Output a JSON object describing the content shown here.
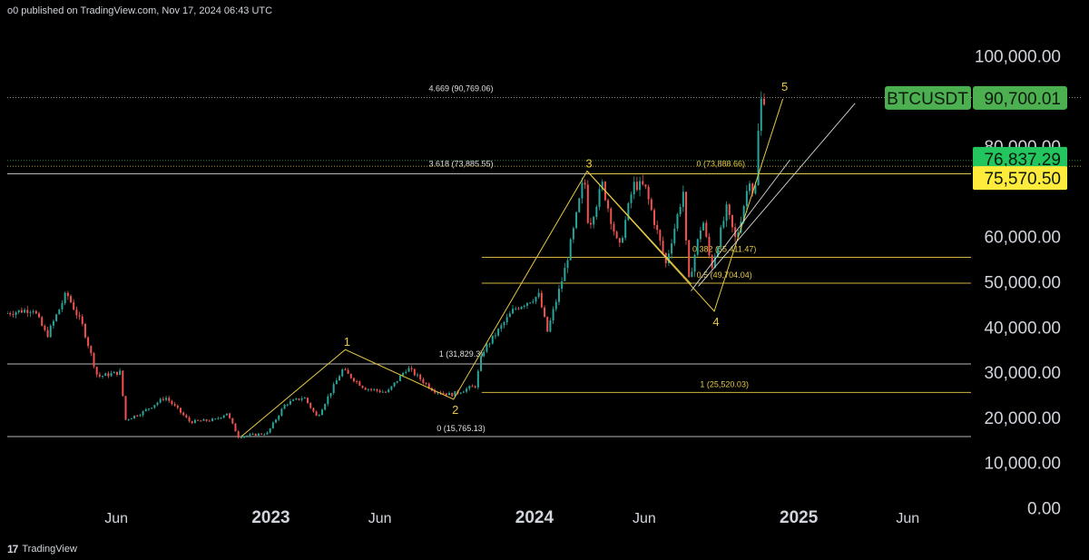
{
  "header": {
    "published_text": "o0 published on TradingView.com, Nov 17, 2024 06:43 UTC"
  },
  "footer": {
    "brand": "TradingView",
    "logo_glyph": "17"
  },
  "colors": {
    "background": "#000000",
    "axis_text": "#d1d4dc",
    "fib": "#e6c945",
    "white_line": "#d8d8d8",
    "candle_up": "#26a69a",
    "candle_down": "#ef5350",
    "symbol_label_bg": "#4caf50",
    "green_label_bg": "#22c55e",
    "yellow_label_bg": "#ffeb3b"
  },
  "chart_data": {
    "type": "candlestick",
    "symbol": "BTCUSDT",
    "ylim": [
      0,
      105000
    ],
    "y_ticks": [
      "100,000.00",
      "80,000.00",
      "60,000.00",
      "50,000.00",
      "40,000.00",
      "30,000.00",
      "20,000.00",
      "10,000.00",
      "0.00"
    ],
    "y_tick_values": [
      100000,
      80000,
      60000,
      50000,
      40000,
      30000,
      20000,
      10000,
      0
    ],
    "x_ticks": [
      {
        "label": "Jun",
        "date": "2022-06-01",
        "bold": false
      },
      {
        "label": "2023",
        "date": "2023-01-01",
        "bold": true
      },
      {
        "label": "Jun",
        "date": "2023-06-01",
        "bold": false
      },
      {
        "label": "2024",
        "date": "2024-01-01",
        "bold": true
      },
      {
        "label": "Jun",
        "date": "2024-06-01",
        "bold": false
      },
      {
        "label": "2025",
        "date": "2025-01-01",
        "bold": true
      },
      {
        "label": "Jun",
        "date": "2025-06-01",
        "bold": false
      }
    ],
    "xlim": [
      "2022-01-01",
      "2025-08-15"
    ],
    "price_path": [
      [
        "2022-01-01",
        43000
      ],
      [
        "2022-02-10",
        44000
      ],
      [
        "2022-03-01",
        38000
      ],
      [
        "2022-03-28",
        47500
      ],
      [
        "2022-04-20",
        40000
      ],
      [
        "2022-05-10",
        29000
      ],
      [
        "2022-06-10",
        30000
      ],
      [
        "2022-06-18",
        19500
      ],
      [
        "2022-07-10",
        21000
      ],
      [
        "2022-08-12",
        24500
      ],
      [
        "2022-09-15",
        19000
      ],
      [
        "2022-10-20",
        19500
      ],
      [
        "2022-11-05",
        21000
      ],
      [
        "2022-11-21",
        15765
      ],
      [
        "2022-12-31",
        16500
      ],
      [
        "2023-01-25",
        23000
      ],
      [
        "2023-02-20",
        24500
      ],
      [
        "2023-03-10",
        20000
      ],
      [
        "2023-04-14",
        30500
      ],
      [
        "2023-05-15",
        26500
      ],
      [
        "2023-06-15",
        25500
      ],
      [
        "2023-07-13",
        31000
      ],
      [
        "2023-08-18",
        26000
      ],
      [
        "2023-09-11",
        25000
      ],
      [
        "2023-10-15",
        27000
      ],
      [
        "2023-10-25",
        34500
      ],
      [
        "2023-12-08",
        44000
      ],
      [
        "2024-01-11",
        47000
      ],
      [
        "2024-01-23",
        39000
      ],
      [
        "2024-02-15",
        52000
      ],
      [
        "2024-02-29",
        62000
      ],
      [
        "2024-03-14",
        73500
      ],
      [
        "2024-03-20",
        62000
      ],
      [
        "2024-04-08",
        71500
      ],
      [
        "2024-05-01",
        57000
      ],
      [
        "2024-05-21",
        71500
      ],
      [
        "2024-06-06",
        71000
      ],
      [
        "2024-07-05",
        54000
      ],
      [
        "2024-07-29",
        70000
      ],
      [
        "2024-08-05",
        49500
      ],
      [
        "2024-08-25",
        64000
      ],
      [
        "2024-09-06",
        53000
      ],
      [
        "2024-09-27",
        66000
      ],
      [
        "2024-10-10",
        59000
      ],
      [
        "2024-10-29",
        73000
      ],
      [
        "2024-11-05",
        68000
      ],
      [
        "2024-11-12",
        89000
      ],
      [
        "2024-11-15",
        90700
      ]
    ],
    "wave_labels": [
      {
        "label": "1",
        "date": "2023-04-14",
        "value": 35000
      },
      {
        "label": "2",
        "date": "2023-09-11",
        "value": 24000
      },
      {
        "label": "3",
        "date": "2024-03-14",
        "value": 74500
      },
      {
        "label": "4",
        "date": "2024-09-06",
        "value": 43500
      },
      {
        "label": "5",
        "date": "2024-12-10",
        "value": 91500
      }
    ],
    "horizontal_lines": [
      {
        "value": 90769.06,
        "label": "4.669 (90,769.06)",
        "color": "white",
        "dotted": true,
        "xstart": "2022-01-01"
      },
      {
        "value": 73885.55,
        "label": "3.618 (73,885.55)",
        "color": "white",
        "xstart": "2022-01-01"
      },
      {
        "value": 76837.29,
        "label": "",
        "color": "green",
        "dotted": true,
        "xstart": "2022-01-01"
      },
      {
        "value": 75570.5,
        "label": "",
        "color": "yellow",
        "dotted": true,
        "xstart": "2022-01-01"
      },
      {
        "value": 31829.3,
        "label": "1 (31,829.3)",
        "color": "white",
        "xstart": "2022-01-01"
      },
      {
        "value": 15765.13,
        "label": "0 (15,765.13)",
        "color": "white",
        "xstart": "2022-01-01"
      },
      {
        "value": 55411.47,
        "label": "0.382 (55,411.47)",
        "color": "fib",
        "xstart": "2023-10-20"
      },
      {
        "value": 49704.04,
        "label": "0.5 (49,704.04)",
        "color": "fib",
        "xstart": "2023-10-20"
      },
      {
        "value": 25520.03,
        "label": "1 (25,520.03)",
        "color": "fib",
        "xstart": "2023-10-20"
      },
      {
        "value": 73888.66,
        "label": "0 (73,888.66)",
        "color": "fib",
        "xstart": "2024-03-14"
      }
    ],
    "price_labels": [
      {
        "text": "90,700.01",
        "value": 90700.01,
        "style": "symbol"
      },
      {
        "text": "76,837.29",
        "value": 76837.29,
        "style": "green"
      },
      {
        "text": "75,570.50",
        "value": 75570.5,
        "style": "yellow"
      }
    ]
  }
}
